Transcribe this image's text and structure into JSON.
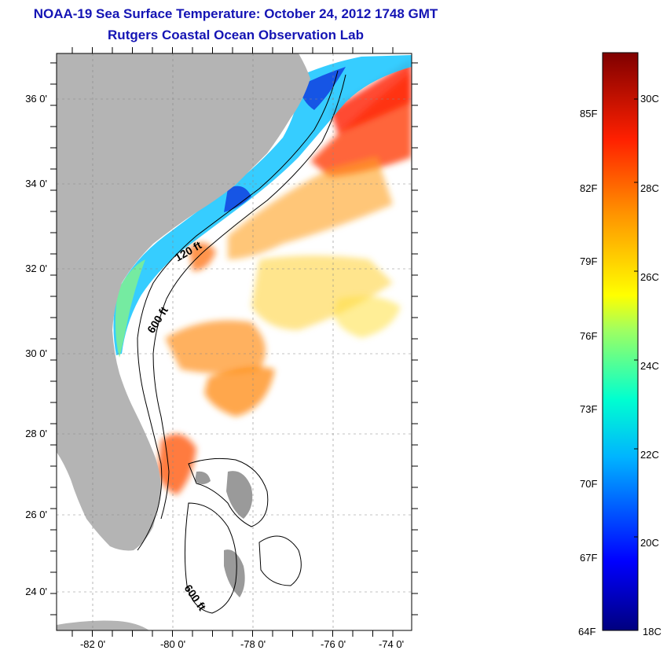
{
  "title": {
    "line1": "NOAA-19 Sea Surface Temperature:  October 24, 2012 1748 GMT",
    "line2": "Rutgers Coastal Ocean Observation Lab"
  },
  "axes": {
    "lat_ticks": [
      "36 0'",
      "34 0'",
      "32 0'",
      "30 0'",
      "28 0'",
      "26 0'",
      "24 0'"
    ],
    "lon_ticks": [
      "-82 0'",
      "-80 0'",
      "-78 0'",
      "-76 0'",
      "-74 0'"
    ]
  },
  "contours": {
    "label_120": "120 ft",
    "label_600_north": "600 ft",
    "label_600_south": "600 ft"
  },
  "colorbar": {
    "fahrenheit": [
      "85F",
      "82F",
      "79F",
      "76F",
      "73F",
      "70F",
      "67F",
      "64F"
    ],
    "celsius": [
      "30C",
      "28C",
      "26C",
      "24C",
      "22C",
      "20C",
      "18C"
    ]
  },
  "colors": {
    "title": "#1414b4",
    "land": "#b4b4b4",
    "frame": "#000000"
  }
}
